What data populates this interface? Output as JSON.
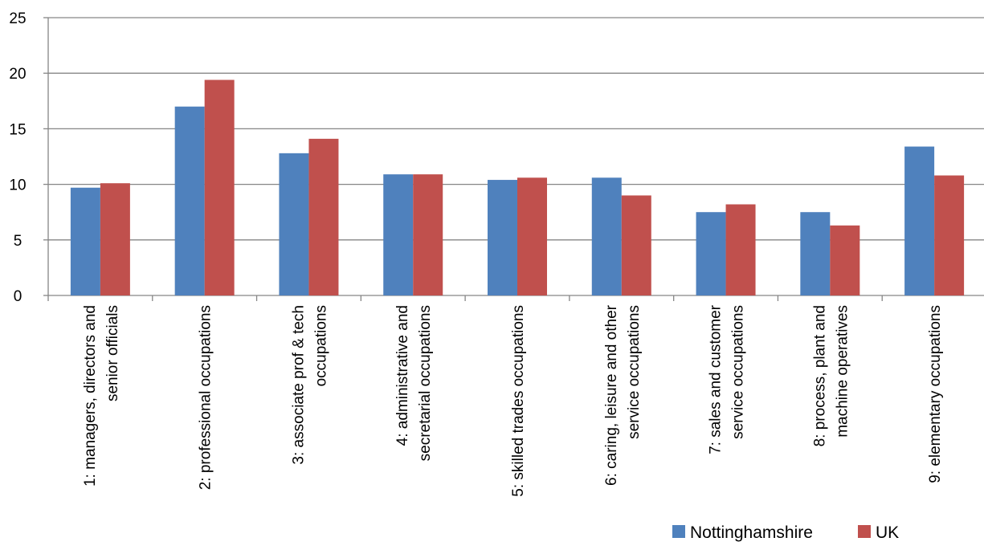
{
  "chart_data": {
    "type": "bar",
    "title": "",
    "xlabel": "",
    "ylabel": "",
    "ylim": [
      0,
      25
    ],
    "yticks": [
      0,
      5,
      10,
      15,
      20,
      25
    ],
    "grid": "horizontal",
    "legend_position": "bottom-right",
    "categories": [
      [
        "1: managers, directors and",
        "senior officials"
      ],
      [
        "2: professional occupations"
      ],
      [
        "3: associate prof & tech",
        "occupations"
      ],
      [
        "4: administrative and",
        "secretarial occupations"
      ],
      [
        "5: skilled trades occupations"
      ],
      [
        "6: caring, leisure and other",
        "service occupations"
      ],
      [
        "7: sales and customer",
        "service occupations"
      ],
      [
        "8: process, plant and",
        "machine operatives"
      ],
      [
        "9: elementary occupations"
      ]
    ],
    "series": [
      {
        "name": "Nottinghamshire",
        "color": "#4F81BD",
        "values": [
          9.7,
          17.0,
          12.8,
          10.9,
          10.4,
          10.6,
          7.5,
          7.5,
          13.4
        ]
      },
      {
        "name": "UK",
        "color": "#C0504D",
        "values": [
          10.1,
          19.4,
          14.1,
          10.9,
          10.6,
          9.0,
          8.2,
          6.3,
          10.8
        ]
      }
    ]
  }
}
